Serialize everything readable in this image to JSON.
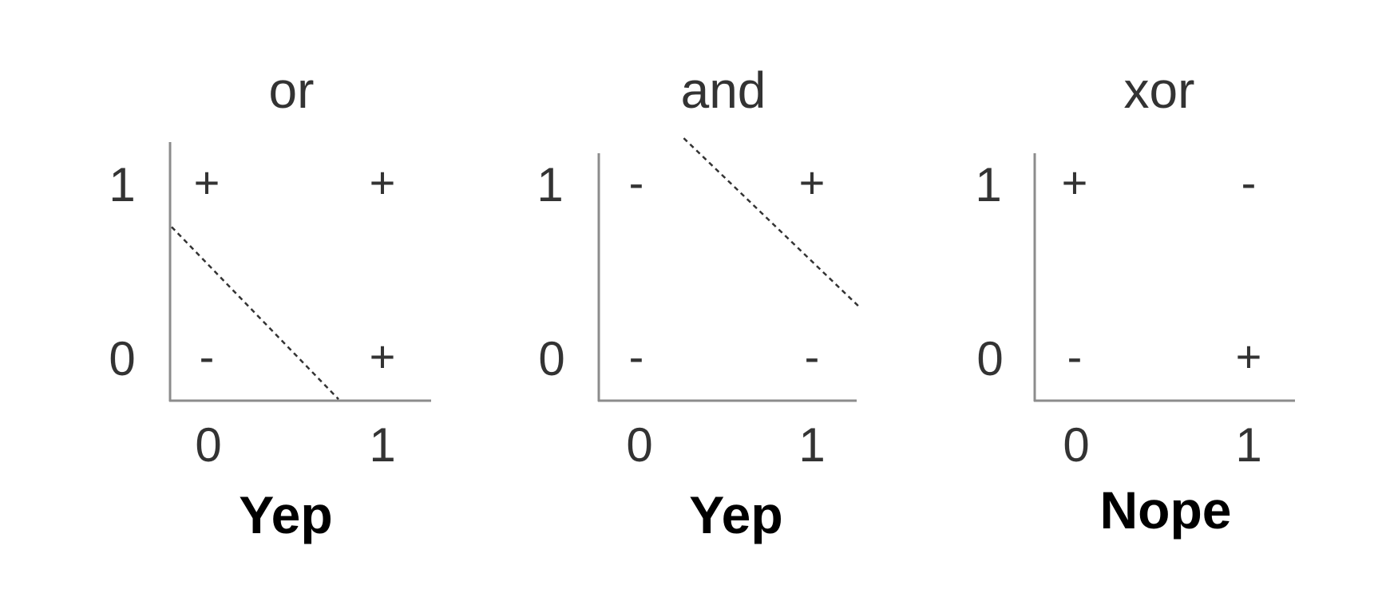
{
  "panels": [
    {
      "title": "or",
      "verdict": "Yep",
      "x_ticks": [
        "0",
        "1"
      ],
      "y_ticks": [
        "0",
        "1"
      ],
      "points": [
        {
          "x": 0,
          "y": 1,
          "label": "+"
        },
        {
          "x": 1,
          "y": 1,
          "label": "+"
        },
        {
          "x": 0,
          "y": 0,
          "label": "-"
        },
        {
          "x": 1,
          "y": 0,
          "label": "+"
        }
      ],
      "separator": [
        [
          -0.2,
          0.76
        ],
        [
          0.75,
          -0.23
        ]
      ]
    },
    {
      "title": "and",
      "verdict": "Yep",
      "x_ticks": [
        "0",
        "1"
      ],
      "y_ticks": [
        "0",
        "1"
      ],
      "points": [
        {
          "x": 0,
          "y": 1,
          "label": "-"
        },
        {
          "x": 1,
          "y": 1,
          "label": "+"
        },
        {
          "x": 0,
          "y": 0,
          "label": "-"
        },
        {
          "x": 1,
          "y": 0,
          "label": "-"
        }
      ],
      "separator": [
        [
          0.27,
          1.27
        ],
        [
          1.27,
          0.3
        ]
      ]
    },
    {
      "title": "xor",
      "verdict": "Nope",
      "x_ticks": [
        "0",
        "1"
      ],
      "y_ticks": [
        "0",
        "1"
      ],
      "points": [
        {
          "x": 0,
          "y": 1,
          "label": "+"
        },
        {
          "x": 1,
          "y": 1,
          "label": "-"
        },
        {
          "x": 0,
          "y": 0,
          "label": "-"
        },
        {
          "x": 1,
          "y": 0,
          "label": "+"
        }
      ],
      "separator": null
    }
  ],
  "colors": {
    "axis": "#8c8c8c",
    "text": "#333333",
    "separator": "#333333",
    "verdict": "#000000"
  }
}
